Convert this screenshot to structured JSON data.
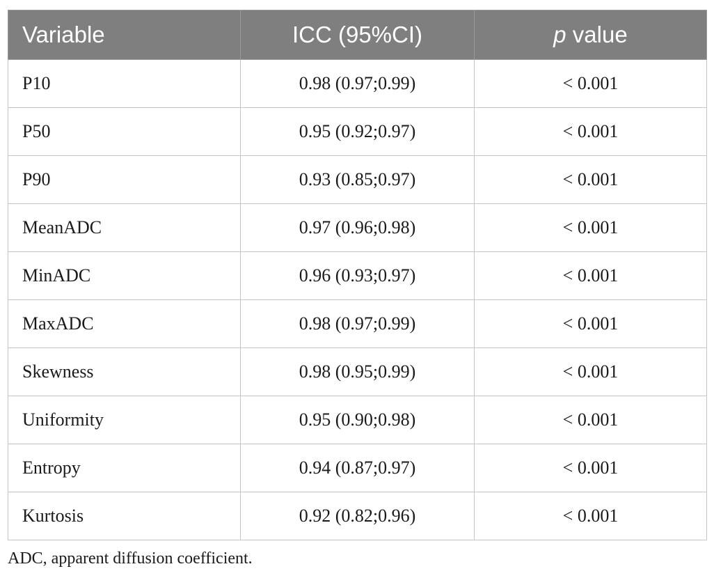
{
  "table": {
    "headers": {
      "variable": "Variable",
      "icc": "ICC (95%CI)",
      "p_italic": "p",
      "p_rest": " value"
    },
    "rows": [
      {
        "variable": "P10",
        "icc": "0.98 (0.97;0.99)",
        "p": "< 0.001"
      },
      {
        "variable": "P50",
        "icc": "0.95 (0.92;0.97)",
        "p": "< 0.001"
      },
      {
        "variable": "P90",
        "icc": "0.93 (0.85;0.97)",
        "p": "< 0.001"
      },
      {
        "variable": "MeanADC",
        "icc": "0.97 (0.96;0.98)",
        "p": "< 0.001"
      },
      {
        "variable": "MinADC",
        "icc": "0.96 (0.93;0.97)",
        "p": "< 0.001"
      },
      {
        "variable": "MaxADC",
        "icc": "0.98 (0.97;0.99)",
        "p": "< 0.001"
      },
      {
        "variable": "Skewness",
        "icc": "0.98 (0.95;0.99)",
        "p": "< 0.001"
      },
      {
        "variable": "Uniformity",
        "icc": "0.95 (0.90;0.98)",
        "p": "< 0.001"
      },
      {
        "variable": "Entropy",
        "icc": "0.94 (0.87;0.97)",
        "p": "< 0.001"
      },
      {
        "variable": "Kurtosis",
        "icc": "0.92 (0.82;0.96)",
        "p": "< 0.001"
      }
    ]
  },
  "footnote": "ADC, apparent diffusion coefficient.",
  "colors": {
    "header_bg": "#7f7f7f",
    "header_text": "#ffffff",
    "grid": "#c4c4c4"
  }
}
